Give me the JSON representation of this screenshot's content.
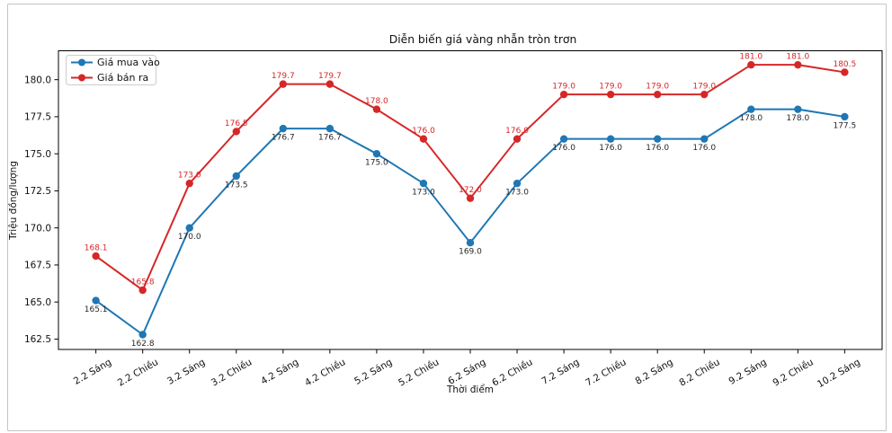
{
  "window": {
    "background": "#ffffff",
    "card_border_color": "#c4c4c4",
    "plot_border_color": "#000000"
  },
  "chart_data": {
    "type": "line",
    "title": "Diễn biến giá vàng nhẫn tròn trơn",
    "xlabel": "Thời điểm",
    "ylabel": "Triệu đồng/lượng",
    "categories": [
      "2.2 Sáng",
      "2.2 Chiều",
      "3.2 Sáng",
      "3.2 Chiều",
      "4.2 Sáng",
      "4.2 Chiều",
      "5.2 Sáng",
      "5.2 Chiều",
      "6.2 Sáng",
      "6.2 Chiều",
      "7.2 Sáng",
      "7.2 Chiều",
      "8.2 Sáng",
      "8.2 Chiều",
      "9.2 Sáng",
      "9.2 Chiều",
      "10.2 Sáng"
    ],
    "series": [
      {
        "key": "gia-mua-vao",
        "name": "Giá mua vào",
        "color": "#1f77b4",
        "label_color": "#262626",
        "label_position": "below",
        "values": [
          165.1,
          162.8,
          170.0,
          173.5,
          176.7,
          176.7,
          175.0,
          173.0,
          169.0,
          173.0,
          176.0,
          176.0,
          176.0,
          176.0,
          178.0,
          178.0,
          177.5
        ]
      },
      {
        "key": "gia-ban-ra",
        "name": "Giá bán ra",
        "color": "#d62728",
        "label_color": "#d62728",
        "label_position": "above",
        "values": [
          168.1,
          165.8,
          173.0,
          176.5,
          179.7,
          179.7,
          178.0,
          176.0,
          172.0,
          176.0,
          179.0,
          179.0,
          179.0,
          179.0,
          181.0,
          181.0,
          180.5
        ]
      }
    ],
    "yticks": [
      162.5,
      165.0,
      167.5,
      170.0,
      172.5,
      175.0,
      177.5,
      180.0
    ],
    "ylim": [
      161.8,
      181.95
    ],
    "grid": false,
    "legend_position": "upper-left",
    "value_label_format": "one_decimal"
  }
}
